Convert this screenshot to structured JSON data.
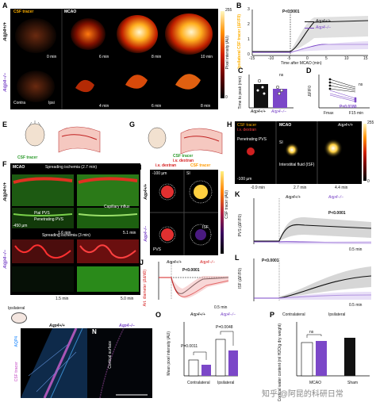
{
  "panelA": {
    "letter": "A",
    "csf_label": "CSF tracer",
    "mcao_label": "MCAO",
    "row_wt": "Aqp4+/+",
    "row_ko": "Aqp4−/−",
    "wt_times": [
      "0 min",
      "6 min",
      "8 min",
      "10 min"
    ],
    "ko_times": [
      "0 min",
      "4 min",
      "6 min",
      "8 min"
    ],
    "contra": "Contra",
    "ipsi": "Ipsi",
    "scale_min": "0",
    "scale_max": "255",
    "scale_label": "Pixel intensity (AU)"
  },
  "panelB": {
    "letter": "B",
    "p_value": "P<0.0001",
    "legend_wt": "Aqp4+/+",
    "legend_ko": "Aqp4−/−",
    "ylabel": "Ipsilateral CSF tracer (ΔF/F0)",
    "xlabel": "Time after MCAO (min)",
    "xticks": [
      "-15",
      "-10",
      "-5",
      "0",
      "5",
      "10",
      "15"
    ],
    "yticks": [
      "0",
      "1",
      "2",
      "3"
    ]
  },
  "panelC": {
    "letter": "C",
    "ns": "ns",
    "ylabel": "Time to peak (min)",
    "xticks": [
      "Aqp4+/+",
      "Aqp4−/−"
    ],
    "yticks": [
      "0",
      "2",
      "4",
      "6",
      "8"
    ]
  },
  "panelD": {
    "letter": "D",
    "ns": "ns",
    "p_value": "P=0.0180",
    "ylabel": "ΔF/F0",
    "xticks": [
      "Fmax",
      "F15 min"
    ],
    "yticks": [
      "0",
      "1",
      "2",
      "3",
      "4"
    ]
  },
  "panelE": {
    "letter": "E",
    "csf": "CSF tracer"
  },
  "panelF": {
    "letter": "F",
    "mcao": "MCAO",
    "spread_wt": "Spreading ischemia (2.7 min)",
    "spread_ko": "Spreading ischemia (3 min)",
    "pial": "Pial PVS",
    "penetrating": "Penetrating PVS",
    "capillary": "Capillary influx",
    "times": [
      "1.6 min",
      "5.1 min",
      "1.5 min",
      "5.0 min"
    ],
    "scale": "-450 µm",
    "row_wt": "Aqp4+/+",
    "row_ko": "Aqp4−/−"
  },
  "panelG": {
    "letter": "G",
    "csf": "CSF tracer",
    "ivd": "i.v. dextran"
  },
  "panelH": {
    "letter": "H",
    "csf": "CSF tracer",
    "ivd": "i.v. dextran",
    "mcao": "MCAO",
    "geno": "Aqp4+/+",
    "pvs": "Penetrating PVS",
    "si": "SI",
    "isf": "Interstitial fluid (ISF)",
    "depth": "-100 µm",
    "times": [
      "-0.9 min",
      "2.7 min",
      "4.4 min"
    ],
    "scale_max": "255",
    "scale_min": "0",
    "scale_label": "Pixel intensity (AU)"
  },
  "panelI": {
    "letter": "I",
    "ivd": "i.v. dextran",
    "csf": "CSF tracer",
    "depth": "-100 µm",
    "si": "SI",
    "isf": "ISF",
    "pvs": "PVS",
    "row_wt": "Aqp4+/+",
    "row_ko": "Aqp4−/−",
    "scale_label": "CSF tracer (AU)"
  },
  "panelJ": {
    "letter": "J",
    "legend_wt": "Aqp4+/+",
    "legend_ko": "Aqp4−/−",
    "p_value": "P<0.0001",
    "ylabel": "Art. diameter (Δd/d0)",
    "scale": "0.5 min",
    "yticks": [
      "0.2",
      "0",
      "-0.2"
    ]
  },
  "panelK": {
    "letter": "K",
    "legend_wt": "Aqp4+/+",
    "legend_ko": "Aqp4−/−",
    "p_value": "P<0.0001",
    "ylabel": "PVS (ΔF/F0)",
    "scale": "0.5 min",
    "yticks": [
      "4",
      "3",
      "2",
      "1",
      "0"
    ]
  },
  "panelL": {
    "letter": "L",
    "p_value": "P<0.0001",
    "ylabel": "ISF (ΔF/F0)",
    "scale": "0.5 min",
    "yticks": [
      "6",
      "4",
      "2",
      "0"
    ]
  },
  "panelM": {
    "letter": "M",
    "ipsilateral": "Ipsilateral",
    "geno": "Aqp4+/+",
    "aqp4": "AQP4",
    "csf": "CSF tracer"
  },
  "panelN": {
    "letter": "N",
    "geno": "Aqp4−/−",
    "cortical": "Cortical surface"
  },
  "panelO": {
    "letter": "O",
    "legend_wt": "Aqp4+/+",
    "legend_ko": "Aqp4−/−",
    "p1": "P=0.0011",
    "p2": "P=0.0048",
    "ylabel": "Mean pixel intensity (AU)",
    "xticks": [
      "Contralateral",
      "Ipsilateral"
    ],
    "yticks": [
      "0",
      "200",
      "400",
      "600",
      "800",
      "1000"
    ]
  },
  "panelP": {
    "letter": "P",
    "legend_contra": "Contralateral",
    "legend_ipsi": "Ipsilateral",
    "ns": "ns",
    "ylabel": "Cortical water content (ml H2O/g dry weight)",
    "xticks": [
      "MCAO",
      "Sham"
    ],
    "yticks": [
      "0",
      "3.1",
      "3.2",
      "3.3",
      "3.4"
    ]
  },
  "watermark": "知乎 @阿昆的科研日常",
  "colors": {
    "wt": "#111111",
    "ko": "#7b47c8",
    "red": "#d62020",
    "csf_orange": "#ff9a00"
  }
}
